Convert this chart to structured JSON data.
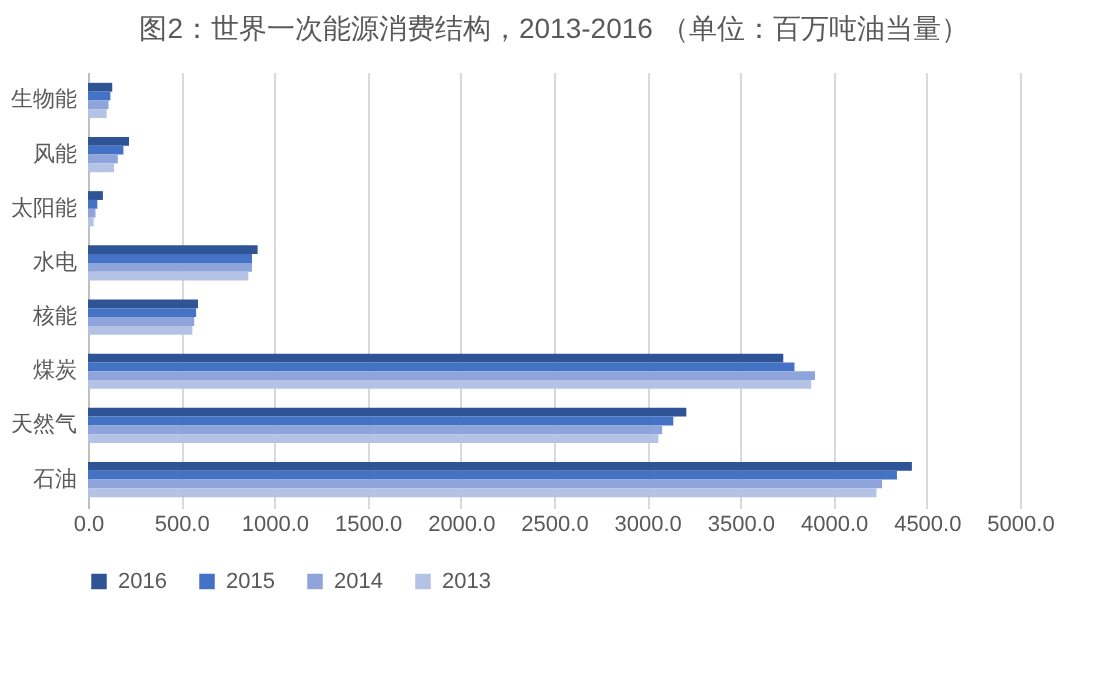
{
  "chart_data": {
    "type": "bar",
    "orientation": "horizontal",
    "title": "图2：世界一次能源消费结构，2013-2016 （单位：百万吨油当量）",
    "categories": [
      "生物能",
      "风能",
      "太阳能",
      "水电",
      "核能",
      "煤炭",
      "天然气",
      "石油"
    ],
    "series": [
      {
        "name": "2016",
        "color": "#2f5496",
        "values": [
          130,
          220,
          80,
          910,
          590,
          3730,
          3210,
          4420
        ]
      },
      {
        "name": "2015",
        "color": "#4472c4",
        "values": [
          120,
          190,
          50,
          880,
          580,
          3790,
          3140,
          4340
        ]
      },
      {
        "name": "2014",
        "color": "#8ea4db",
        "values": [
          110,
          160,
          40,
          880,
          570,
          3900,
          3080,
          4260
        ]
      },
      {
        "name": "2013",
        "color": "#b4c2e6",
        "values": [
          100,
          140,
          30,
          860,
          560,
          3880,
          3060,
          4230
        ]
      }
    ],
    "xlim": [
      0,
      5000
    ],
    "xticks": [
      {
        "value": 0,
        "label": "0.0"
      },
      {
        "value": 500,
        "label": "500.0"
      },
      {
        "value": 1000,
        "label": "1000.0"
      },
      {
        "value": 1500,
        "label": "1500.0"
      },
      {
        "value": 2000,
        "label": "2000.0"
      },
      {
        "value": 2500,
        "label": "2500.0"
      },
      {
        "value": 3000,
        "label": "3000.0"
      },
      {
        "value": 3500,
        "label": "3500.0"
      },
      {
        "value": 4000,
        "label": "4000.0"
      },
      {
        "value": 4500,
        "label": "4500.0"
      },
      {
        "value": 5000,
        "label": "5000.0"
      }
    ],
    "grid": "x",
    "legend": "bottom"
  }
}
